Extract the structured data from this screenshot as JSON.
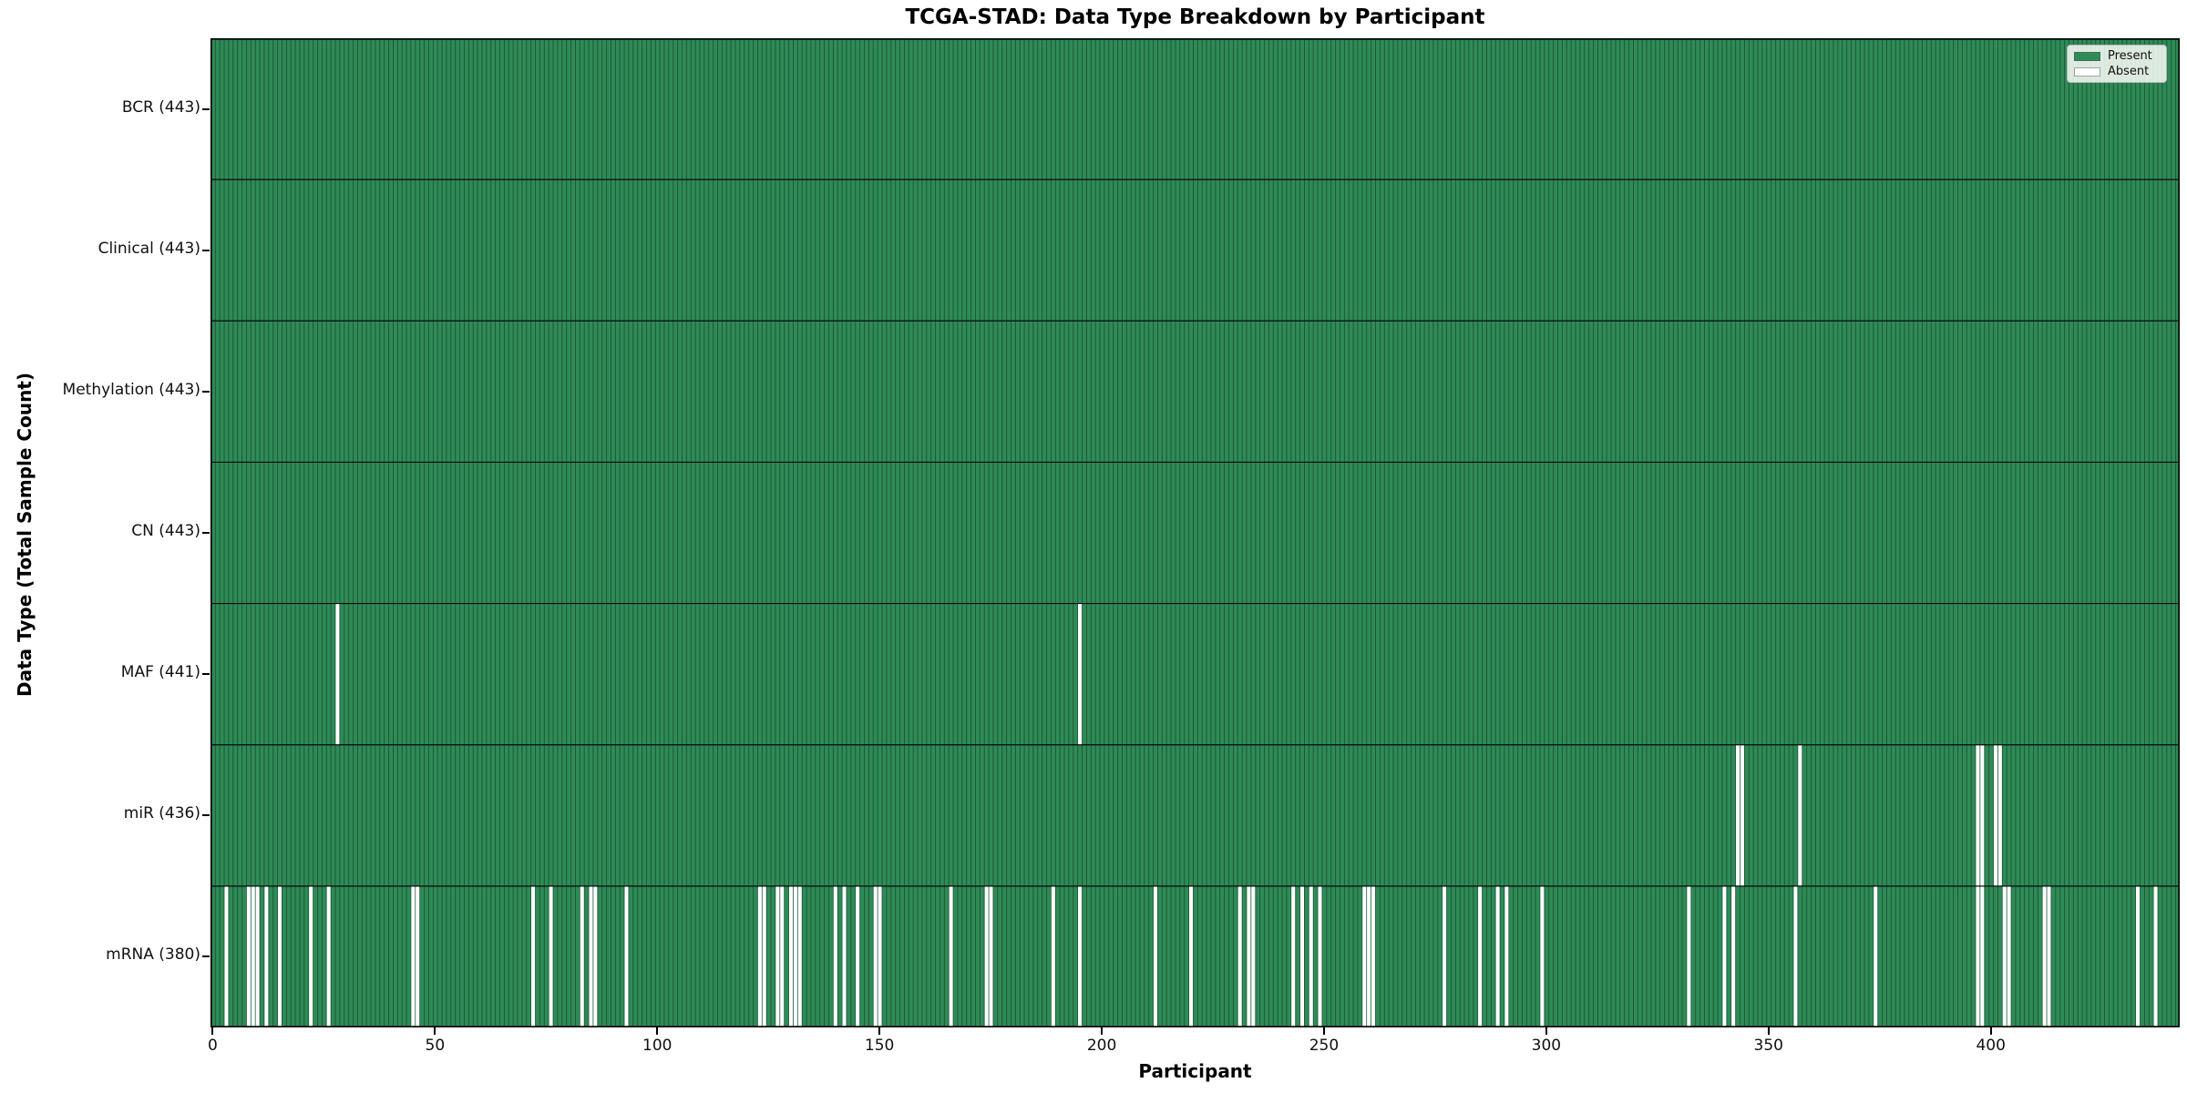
{
  "colors": {
    "present": "#2e8b57",
    "absent": "#ffffff",
    "cell_edge": "rgba(0,0,0,0.45)",
    "row_separator": "#0a0a0a",
    "frame": "#000000",
    "legend_bg": "rgba(252,252,248,0.85)"
  },
  "chart_data": {
    "type": "heatmap",
    "title": "TCGA-STAD: Data Type Breakdown by Participant",
    "xlabel": "Participant",
    "ylabel": "Data Type (Total Sample Count)",
    "legend": {
      "present": "Present",
      "absent": "Absent"
    },
    "legend_position": "upper right",
    "n_participants": 443,
    "x_ticks": [
      0,
      50,
      100,
      150,
      200,
      250,
      300,
      350,
      400
    ],
    "cell_values": "1 = present (green), 0 = absent (white)",
    "rows": [
      {
        "label": "BCR (443)",
        "data_type": "BCR",
        "total": 443,
        "absent_participants": []
      },
      {
        "label": "Clinical (443)",
        "data_type": "Clinical",
        "total": 443,
        "absent_participants": []
      },
      {
        "label": "Methylation (443)",
        "data_type": "Methylation",
        "total": 443,
        "absent_participants": []
      },
      {
        "label": "CN (443)",
        "data_type": "CN",
        "total": 443,
        "absent_participants": []
      },
      {
        "label": "MAF (441)",
        "data_type": "MAF",
        "total": 441,
        "absent_participants": [
          28,
          195
        ]
      },
      {
        "label": "miR (436)",
        "data_type": "miR",
        "total": 436,
        "absent_participants": [
          343,
          344,
          357,
          397,
          398,
          401,
          402
        ]
      },
      {
        "label": "mRNA (380)",
        "data_type": "mRNA",
        "total": 380,
        "absent_participants": [
          3,
          8,
          9,
          10,
          12,
          15,
          22,
          26,
          45,
          46,
          72,
          76,
          83,
          85,
          86,
          93,
          123,
          124,
          127,
          128,
          130,
          131,
          132,
          140,
          142,
          145,
          149,
          150,
          166,
          174,
          175,
          189,
          195,
          212,
          220,
          231,
          233,
          234,
          243,
          245,
          247,
          249,
          259,
          260,
          261,
          277,
          285,
          289,
          291,
          299,
          332,
          340,
          342,
          356,
          374,
          397,
          398,
          403,
          404,
          412,
          413,
          433,
          437
        ]
      }
    ]
  }
}
